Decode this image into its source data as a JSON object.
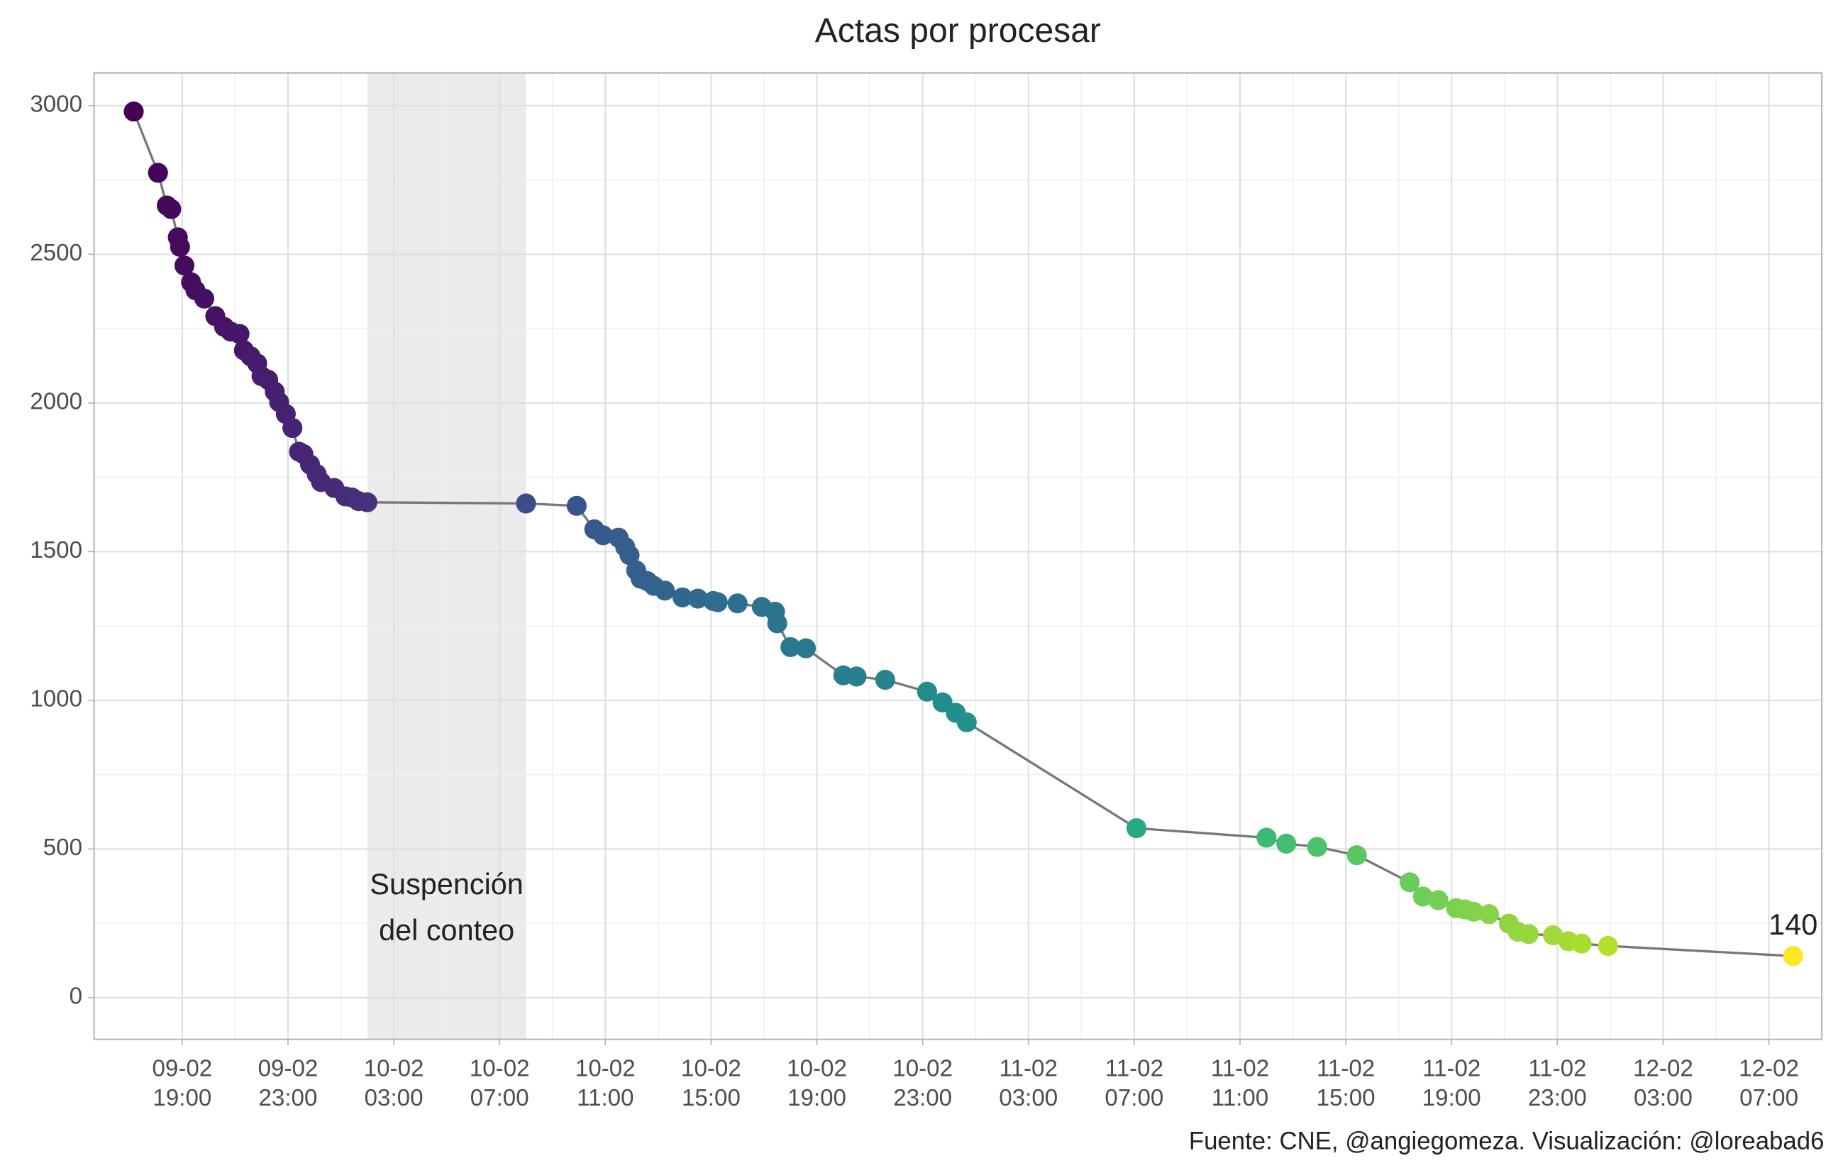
{
  "chart_data": {
    "type": "line",
    "title": "Actas por procesar",
    "caption": "Fuente: CNE, @angiegomeza. Visualización: @loreabad6",
    "annotation": "Suspención del conteo",
    "shade": [
      "10-02 02:00",
      "10-02 08:00"
    ],
    "markers": true,
    "colormap": "viridis",
    "line_color": "#777777",
    "grid": true,
    "last_value_label": true,
    "x": [
      "09-02 17:10",
      "09-02 18:05",
      "09-02 18:25",
      "09-02 18:35",
      "09-02 18:50",
      "09-02 18:55",
      "09-02 19:05",
      "09-02 19:20",
      "09-02 19:30",
      "09-02 19:50",
      "09-02 20:15",
      "09-02 20:35",
      "09-02 20:50",
      "09-02 21:10",
      "09-02 21:20",
      "09-02 21:35",
      "09-02 21:50",
      "09-02 22:00",
      "09-02 22:15",
      "09-02 22:30",
      "09-02 22:40",
      "09-02 22:55",
      "09-02 23:10",
      "09-02 23:25",
      "09-02 23:35",
      "09-02 23:50",
      "10-02 00:05",
      "10-02 00:15",
      "10-02 00:45",
      "10-02 01:10",
      "10-02 01:25",
      "10-02 01:40",
      "10-02 02:00",
      "10-02 08:00",
      "10-02 09:55",
      "10-02 10:35",
      "10-02 10:55",
      "10-02 11:30",
      "10-02 11:45",
      "10-02 11:55",
      "10-02 12:10",
      "10-02 12:20",
      "10-02 12:35",
      "10-02 12:50",
      "10-02 13:15",
      "10-02 13:55",
      "10-02 14:30",
      "10-02 15:05",
      "10-02 15:15",
      "10-02 16:00",
      "10-02 16:55",
      "10-02 17:25",
      "10-02 17:30",
      "10-02 18:00",
      "10-02 18:35",
      "10-02 20:00",
      "10-02 20:30",
      "10-02 21:35",
      "10-02 23:10",
      "10-02 23:45",
      "11-02 00:15",
      "11-02 00:40",
      "11-02 07:05",
      "11-02 12:00",
      "11-02 12:45",
      "11-02 13:55",
      "11-02 15:25",
      "11-02 17:25",
      "11-02 17:55",
      "11-02 18:30",
      "11-02 19:10",
      "11-02 19:30",
      "11-02 19:50",
      "11-02 20:25",
      "11-02 21:10",
      "11-02 21:30",
      "11-02 21:55",
      "11-02 22:50",
      "11-02 23:25",
      "11-02 23:55",
      "12-02 00:55",
      "12-02 07:55"
    ],
    "values": [
      2980,
      2774,
      2664,
      2652,
      2557,
      2525,
      2462,
      2406,
      2379,
      2351,
      2292,
      2256,
      2240,
      2232,
      2177,
      2157,
      2133,
      2090,
      2078,
      2038,
      2003,
      1963,
      1916,
      1836,
      1828,
      1793,
      1761,
      1734,
      1714,
      1686,
      1682,
      1670,
      1666,
      1662,
      1654,
      1575,
      1555,
      1547,
      1516,
      1488,
      1437,
      1409,
      1401,
      1385,
      1369,
      1346,
      1342,
      1334,
      1330,
      1326,
      1314,
      1298,
      1259,
      1179,
      1175,
      1084,
      1080,
      1069,
      1029,
      993,
      958,
      926,
      570,
      538,
      518,
      507,
      479,
      388,
      340,
      328,
      301,
      297,
      289,
      281,
      249,
      222,
      214,
      210,
      190,
      182,
      174,
      140
    ],
    "xlim": [
      "09-02 15:40",
      "12-02 09:00"
    ],
    "xticks": [
      "09-02 19:00",
      "09-02 23:00",
      "10-02 03:00",
      "10-02 07:00",
      "10-02 11:00",
      "10-02 15:00",
      "10-02 19:00",
      "10-02 23:00",
      "11-02 03:00",
      "11-02 07:00",
      "11-02 11:00",
      "11-02 15:00",
      "11-02 19:00",
      "11-02 23:00",
      "12-02 03:00",
      "12-02 07:00"
    ],
    "ylim": [
      -140,
      3110
    ],
    "yticks": [
      0,
      500,
      1000,
      1500,
      2000,
      2500,
      3000
    ]
  }
}
